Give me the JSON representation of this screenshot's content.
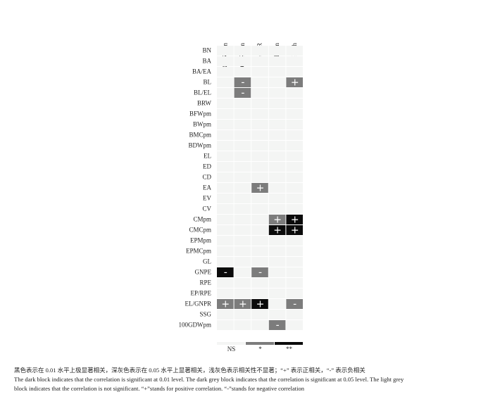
{
  "chart_data": {
    "type": "heatmap",
    "columns": [
      "GDRbpm",
      "GDRapm",
      "GTDR",
      "GMCpm",
      "GMCh"
    ],
    "rows": [
      "BN",
      "BA",
      "BA/EA",
      "BL",
      "BL/EL",
      "BRW",
      "BFWpm",
      "BWpm",
      "BMCpm",
      "BDWpm",
      "EL",
      "ED",
      "CD",
      "EA",
      "EV",
      "CV",
      "CMpm",
      "CMCpm",
      "EPMpm",
      "EPMCpm",
      "GL",
      "GNPE",
      "RPE",
      "EP/RPE",
      "EL/GNPR",
      "SSG",
      "100GDWpm"
    ],
    "values": [
      [
        0,
        0,
        0,
        0,
        0
      ],
      [
        0,
        0,
        0,
        0,
        0
      ],
      [
        0,
        0,
        0,
        0,
        0
      ],
      [
        0,
        1,
        0,
        0,
        1
      ],
      [
        0,
        1,
        0,
        0,
        0
      ],
      [
        0,
        0,
        0,
        0,
        0
      ],
      [
        0,
        0,
        0,
        0,
        0
      ],
      [
        0,
        0,
        0,
        0,
        0
      ],
      [
        0,
        0,
        0,
        0,
        0
      ],
      [
        0,
        0,
        0,
        0,
        0
      ],
      [
        0,
        0,
        0,
        0,
        0
      ],
      [
        0,
        0,
        0,
        0,
        0
      ],
      [
        0,
        0,
        0,
        0,
        0
      ],
      [
        0,
        0,
        1,
        0,
        0
      ],
      [
        0,
        0,
        0,
        0,
        0
      ],
      [
        0,
        0,
        0,
        0,
        0
      ],
      [
        0,
        0,
        0,
        1,
        2
      ],
      [
        0,
        0,
        0,
        2,
        2
      ],
      [
        0,
        0,
        0,
        0,
        0
      ],
      [
        0,
        0,
        0,
        0,
        0
      ],
      [
        0,
        0,
        0,
        0,
        0
      ],
      [
        2,
        0,
        1,
        0,
        0
      ],
      [
        0,
        0,
        0,
        0,
        0
      ],
      [
        0,
        0,
        0,
        0,
        0
      ],
      [
        1,
        1,
        2,
        0,
        1
      ],
      [
        0,
        0,
        0,
        0,
        0
      ],
      [
        0,
        0,
        0,
        1,
        0
      ]
    ],
    "signs": [
      [
        null,
        null,
        null,
        null,
        null
      ],
      [
        null,
        null,
        null,
        null,
        null
      ],
      [
        null,
        null,
        null,
        null,
        null
      ],
      [
        null,
        "-",
        null,
        null,
        "+"
      ],
      [
        null,
        "-",
        null,
        null,
        null
      ],
      [
        null,
        null,
        null,
        null,
        null
      ],
      [
        null,
        null,
        null,
        null,
        null
      ],
      [
        null,
        null,
        null,
        null,
        null
      ],
      [
        null,
        null,
        null,
        null,
        null
      ],
      [
        null,
        null,
        null,
        null,
        null
      ],
      [
        null,
        null,
        null,
        null,
        null
      ],
      [
        null,
        null,
        null,
        null,
        null
      ],
      [
        null,
        null,
        null,
        null,
        null
      ],
      [
        null,
        null,
        "+",
        null,
        null
      ],
      [
        null,
        null,
        null,
        null,
        null
      ],
      [
        null,
        null,
        null,
        null,
        null
      ],
      [
        null,
        null,
        null,
        "+",
        "+"
      ],
      [
        null,
        null,
        null,
        "+",
        "+"
      ],
      [
        null,
        null,
        null,
        null,
        null
      ],
      [
        null,
        null,
        null,
        null,
        null
      ],
      [
        null,
        null,
        null,
        null,
        null
      ],
      [
        "-",
        null,
        "-",
        null,
        null
      ],
      [
        null,
        null,
        null,
        null,
        null
      ],
      [
        null,
        null,
        null,
        null,
        null
      ],
      [
        "+",
        "+",
        "+",
        null,
        "-"
      ],
      [
        null,
        null,
        null,
        null,
        null
      ],
      [
        null,
        null,
        null,
        "-",
        null
      ]
    ],
    "legend": [
      {
        "label": "NS",
        "color": "#f4f5f4"
      },
      {
        "label": "*",
        "color": "#7c7c7c"
      },
      {
        "label": "**",
        "color": "#0b0b0b"
      }
    ],
    "caption": [
      "黑色表示在 0.01 水平上极显著相关，深灰色表示在 0.05 水平上显著相关，浅灰色表示相关性不显著；“+” 表示正相关，“-” 表示负相关",
      "The dark block indicates that the correlation is significant at 0.01 level. The dark grey block indicates that the correlation is significant at 0.05 level. The light grey",
      "block indicates that the correlation is not significant. “+”stands for positive correlation. “-”stands for negative correlation"
    ]
  }
}
